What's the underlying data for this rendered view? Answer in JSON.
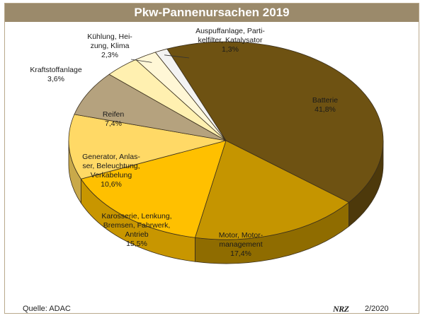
{
  "chart_data": {
    "type": "pie",
    "title": "Pkw-Pannenursachen 2019",
    "slices": [
      {
        "label": [
          "Batterie"
        ],
        "value_label": "41,8%",
        "value": 41.8,
        "color": "#6e5212",
        "side": "#4d390b"
      },
      {
        "label": [
          "Motor, Motor-",
          "management"
        ],
        "value_label": "17,4%",
        "value": 17.4,
        "color": "#c59500",
        "side": "#8f6c00"
      },
      {
        "label": [
          "Karosserie, Lenkung,",
          "Bremsen, Fahrwerk,",
          "Antrieb"
        ],
        "value_label": "15,5%",
        "value": 15.5,
        "color": "#ffc000",
        "side": "#c89600"
      },
      {
        "label": [
          "Generator, Anlas-",
          "ser, Beleuchtung,",
          "Verkabelung"
        ],
        "value_label": "10,6%",
        "value": 10.6,
        "color": "#ffd966",
        "side": "#c9a94a"
      },
      {
        "label": [
          "Reifen"
        ],
        "value_label": "7,4%",
        "value": 7.4,
        "color": "#b5a27e",
        "side": "#8a7a5c"
      },
      {
        "label": [
          "Kraftstoffanlage"
        ],
        "value_label": "3,6%",
        "value": 3.6,
        "color": "#fff0b0",
        "side": "#c9bc86"
      },
      {
        "label": [
          "Kühlung, Hei-",
          "zung, Klima"
        ],
        "value_label": "2,3%",
        "value": 2.3,
        "color": "#fff7d6",
        "side": "#cfc7a6"
      },
      {
        "label": [
          "Auspuffanlage, Parti-",
          "kelfilter, Katalysator"
        ],
        "value_label": "1,3%",
        "value": 1.3,
        "color": "#f3f3f3",
        "side": "#bdbdbd"
      }
    ]
  },
  "source": "Quelle: ADAC",
  "logo": "NRZ",
  "date": "2/2020"
}
